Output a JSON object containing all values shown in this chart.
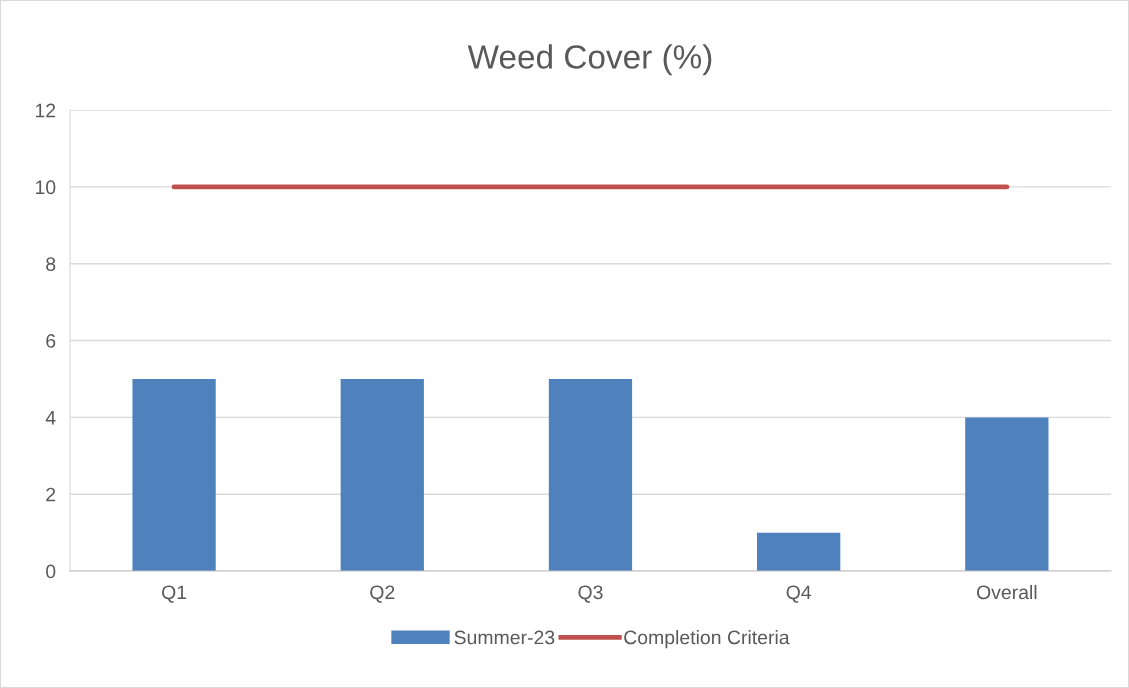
{
  "chart_data": {
    "type": "bar",
    "title": "Weed Cover (%)",
    "categories": [
      "Q1",
      "Q2",
      "Q3",
      "Q4",
      "Overall"
    ],
    "series": [
      {
        "name": "Summer-23",
        "color": "#4f81bd",
        "values": [
          5,
          5,
          5,
          1,
          4
        ]
      },
      {
        "name": "Completion Criteria",
        "type": "line",
        "color": "#c0504d",
        "values": [
          10,
          10,
          10,
          10,
          10
        ]
      }
    ],
    "ylim": [
      0,
      12
    ],
    "yticks": [
      0,
      2,
      4,
      6,
      8,
      10,
      12
    ],
    "grid": "y",
    "legend": "bottom",
    "marker": "none",
    "line_style": "solid"
  }
}
